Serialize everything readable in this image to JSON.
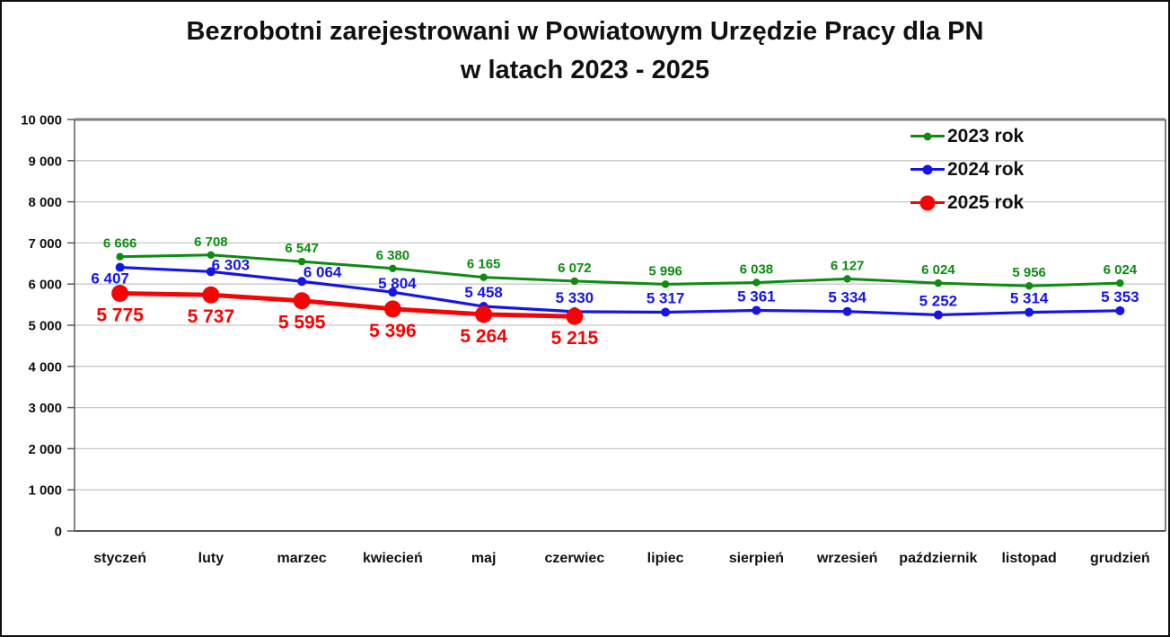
{
  "title": {
    "line1": "Bezrobotni zarejestrowani w Powiatowym Urzędzie Pracy dla PN",
    "line2": "w latach 2023 - 2025"
  },
  "chart_data": {
    "type": "line",
    "categories": [
      "styczeń",
      "luty",
      "marzec",
      "kwiecień",
      "maj",
      "czerwiec",
      "lipiec",
      "sierpień",
      "wrzesień",
      "październik",
      "listopad",
      "grudzień"
    ],
    "series": [
      {
        "name": "2023 rok",
        "color": "#0d8c11",
        "line_width": 3,
        "marker_radius": 4.2,
        "label_font_size": 15,
        "label_dx": 0,
        "label_dy": -10,
        "label_overrides": {},
        "values": [
          6666,
          6708,
          6547,
          6380,
          6165,
          6072,
          5996,
          6038,
          6127,
          6024,
          5956,
          6024
        ]
      },
      {
        "name": "2024 rok",
        "color": "#1515ea",
        "line_width": 3.2,
        "marker_radius": 5,
        "label_font_size": 17,
        "label_dx": 0,
        "label_dy": -10,
        "label_overrides": {
          "0": {
            "dx": -11,
            "dy": 18
          },
          "1": {
            "dx": 22,
            "dy": -2
          },
          "2": {
            "dx": 23,
            "dy": -5
          },
          "3": {
            "dx": 5,
            "dy": -4
          }
        },
        "values": [
          6407,
          6303,
          6064,
          5804,
          5458,
          5330,
          5317,
          5361,
          5334,
          5252,
          5314,
          5353
        ]
      },
      {
        "name": "2025 rok",
        "color": "#f60404",
        "line_width": 5,
        "marker_radius": 9.5,
        "label_font_size": 21,
        "label_dx": 0,
        "label_dy": 31,
        "label_overrides": {},
        "values": [
          5775,
          5737,
          5595,
          5396,
          5264,
          5215
        ]
      }
    ],
    "ylim": [
      0,
      10000
    ],
    "y_tick_step": 1000,
    "y_tick_labels": [
      "0",
      "1 000",
      "2 000",
      "3 000",
      "4 000",
      "5 000",
      "6 000",
      "7 000",
      "8 000",
      "9 000",
      "10 000"
    ],
    "xlabel": "",
    "ylabel": "",
    "grid": "horizontal",
    "legend_position": "inside-top-right",
    "number_format": "space-thousands",
    "colors": {
      "gridline": "#c8c8c8",
      "plot_top_border": "#808080",
      "axis_border": "#595959",
      "text": "#111111",
      "background": "#ffffff",
      "outer_border": "#101010"
    }
  }
}
